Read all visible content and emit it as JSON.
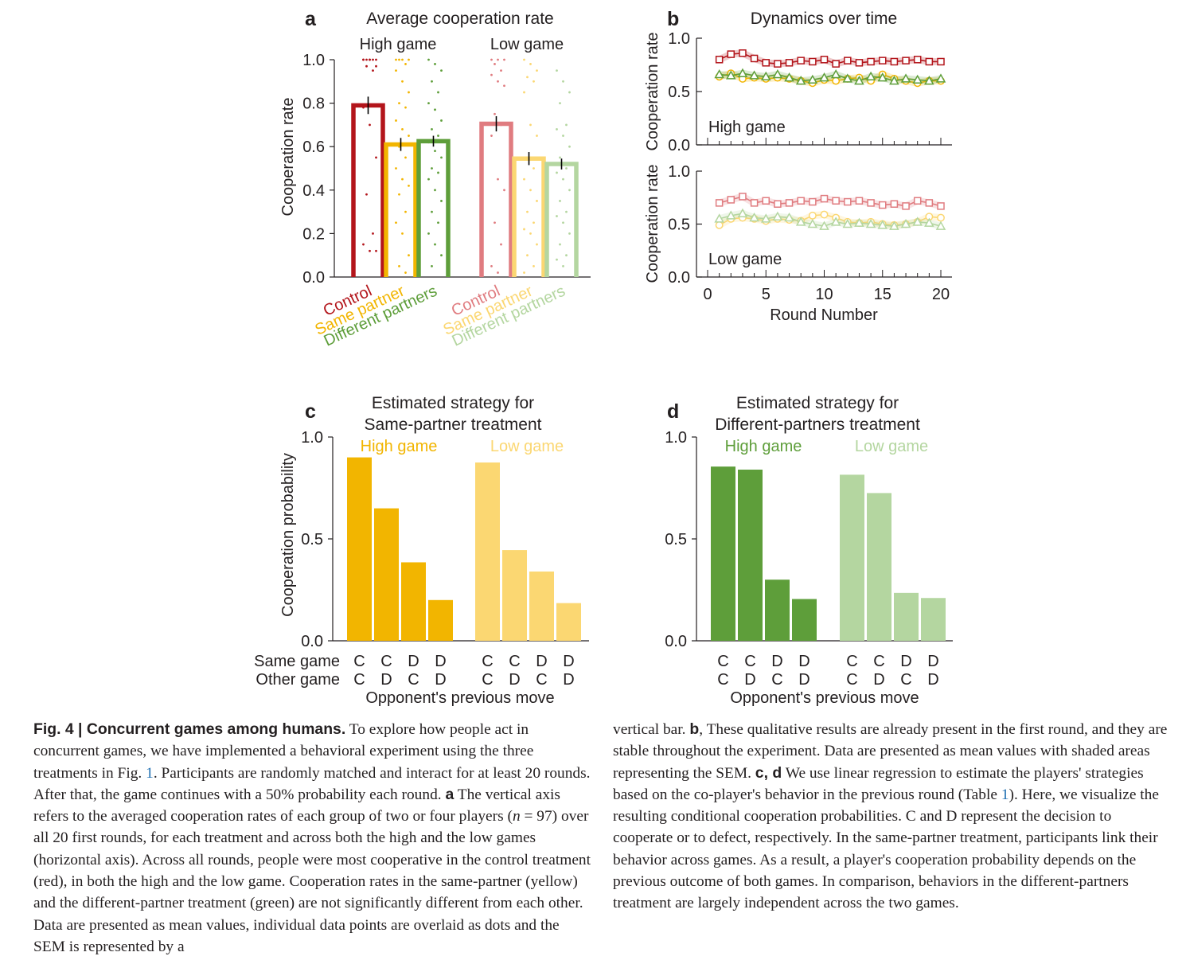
{
  "colors": {
    "control_high": "#b3151b",
    "same_high": "#f2b500",
    "diff_high": "#5e9e3a",
    "control_low": "#e07c80",
    "same_low": "#fbd772",
    "diff_low": "#b4d6a0",
    "axis": "#231f20"
  },
  "panel_a": {
    "letter": "a",
    "title": "Average cooperation rate",
    "ylabel": "Cooperation rate",
    "group_labels": [
      "High game",
      "Low game"
    ],
    "xticklabels": [
      "Control",
      "Same partner",
      "Different partners"
    ],
    "chart_data": {
      "type": "bar",
      "ylim": [
        0,
        1.0
      ],
      "yticks": [
        "0.0",
        "0.2",
        "0.4",
        "0.6",
        "0.8",
        "1.0"
      ],
      "groups": [
        "High game",
        "Low game"
      ],
      "categories": [
        "Control",
        "Same partner",
        "Different partners"
      ],
      "values": [
        [
          0.79,
          0.61,
          0.625
        ],
        [
          0.705,
          0.545,
          0.52
        ]
      ],
      "sem": [
        [
          0.04,
          0.03,
          0.025
        ],
        [
          0.035,
          0.03,
          0.025
        ]
      ],
      "points": [
        [
          [
            1,
            1,
            1,
            1,
            1,
            1,
            1,
            0.97,
            0.97,
            0.95,
            0.78,
            0.7,
            0.55,
            0.38,
            0.2,
            0.15,
            0.12,
            0.12
          ],
          [
            1,
            1,
            1,
            1,
            0.98,
            0.95,
            0.9,
            0.85,
            0.8,
            0.78,
            0.72,
            0.68,
            0.65,
            0.6,
            0.55,
            0.5,
            0.45,
            0.42,
            0.38,
            0.3,
            0.25,
            0.2,
            0.1,
            0.05,
            0.02
          ],
          [
            1,
            0.98,
            0.95,
            0.9,
            0.85,
            0.8,
            0.77,
            0.72,
            0.68,
            0.65,
            0.62,
            0.58,
            0.55,
            0.5,
            0.48,
            0.45,
            0.4,
            0.35,
            0.3,
            0.25,
            0.2,
            0.15,
            0.1,
            0.05
          ]
        ],
        [
          [
            1,
            1,
            1,
            0.98,
            0.95,
            0.93,
            0.9,
            0.88,
            0.75,
            0.7,
            0.65,
            0.45,
            0.4,
            0.25,
            0.15,
            0.05,
            0.02
          ],
          [
            1,
            0.98,
            0.95,
            0.92,
            0.9,
            0.85,
            0.7,
            0.65,
            0.55,
            0.5,
            0.45,
            0.4,
            0.35,
            0.3,
            0.25,
            0.22,
            0.2,
            0.15,
            0.1,
            0.05,
            0.02
          ],
          [
            0.95,
            0.9,
            0.85,
            0.8,
            0.7,
            0.68,
            0.65,
            0.6,
            0.55,
            0.5,
            0.48,
            0.45,
            0.4,
            0.35,
            0.3,
            0.28,
            0.25,
            0.2,
            0.15,
            0.1,
            0.08,
            0.05
          ]
        ]
      ]
    }
  },
  "panel_b": {
    "letter": "b",
    "title": "Dynamics over time",
    "ylabel": "Cooperation rate",
    "xlabel": "Round Number",
    "xticks": [
      "0",
      "5",
      "10",
      "15",
      "20"
    ],
    "yticks": [
      "0.0",
      "0.5",
      "1.0"
    ],
    "subplots": [
      {
        "label": "High game",
        "chart_data": {
          "type": "line",
          "x": [
            1,
            2,
            3,
            4,
            5,
            6,
            7,
            8,
            9,
            10,
            11,
            12,
            13,
            14,
            15,
            16,
            17,
            18,
            19,
            20
          ],
          "ylim": [
            0,
            1
          ],
          "series": [
            {
              "color_key": "control_high",
              "marker": "square",
              "values": [
                0.8,
                0.85,
                0.86,
                0.81,
                0.77,
                0.76,
                0.77,
                0.79,
                0.78,
                0.8,
                0.76,
                0.79,
                0.77,
                0.78,
                0.79,
                0.78,
                0.79,
                0.8,
                0.78,
                0.78
              ]
            },
            {
              "color_key": "same_high",
              "marker": "circle",
              "values": [
                0.64,
                0.67,
                0.62,
                0.63,
                0.62,
                0.63,
                0.62,
                0.6,
                0.58,
                0.61,
                0.6,
                0.62,
                0.63,
                0.6,
                0.66,
                0.62,
                0.6,
                0.58,
                0.6,
                0.6
              ]
            },
            {
              "color_key": "diff_high",
              "marker": "triangle",
              "values": [
                0.66,
                0.65,
                0.67,
                0.65,
                0.64,
                0.66,
                0.63,
                0.6,
                0.61,
                0.63,
                0.66,
                0.62,
                0.6,
                0.64,
                0.63,
                0.6,
                0.62,
                0.61,
                0.6,
                0.62
              ]
            }
          ]
        }
      },
      {
        "label": "Low game",
        "chart_data": {
          "type": "line",
          "x": [
            1,
            2,
            3,
            4,
            5,
            6,
            7,
            8,
            9,
            10,
            11,
            12,
            13,
            14,
            15,
            16,
            17,
            18,
            19,
            20
          ],
          "ylim": [
            0,
            1
          ],
          "series": [
            {
              "color_key": "control_low",
              "marker": "square",
              "values": [
                0.7,
                0.73,
                0.76,
                0.7,
                0.72,
                0.69,
                0.7,
                0.72,
                0.71,
                0.74,
                0.72,
                0.71,
                0.72,
                0.7,
                0.68,
                0.69,
                0.67,
                0.72,
                0.7,
                0.67
              ]
            },
            {
              "color_key": "same_low",
              "marker": "circle",
              "values": [
                0.49,
                0.55,
                0.56,
                0.55,
                0.53,
                0.55,
                0.54,
                0.53,
                0.58,
                0.59,
                0.56,
                0.52,
                0.51,
                0.52,
                0.5,
                0.49,
                0.5,
                0.52,
                0.57,
                0.56
              ]
            },
            {
              "color_key": "diff_low",
              "marker": "triangle",
              "values": [
                0.55,
                0.58,
                0.6,
                0.56,
                0.55,
                0.57,
                0.56,
                0.52,
                0.5,
                0.48,
                0.52,
                0.5,
                0.51,
                0.5,
                0.49,
                0.48,
                0.5,
                0.52,
                0.51,
                0.48
              ]
            }
          ]
        }
      }
    ]
  },
  "panel_c": {
    "letter": "c",
    "title_lines": [
      "Estimated strategy for",
      "Same-partner treatment"
    ],
    "ylabel": "Cooperation probability",
    "group_labels": [
      "High game",
      "Low game"
    ],
    "row_labels": [
      "Same game",
      "Other game"
    ],
    "xlabel": "Opponent's previous move",
    "chart_data": {
      "type": "bar",
      "ylim": [
        0,
        1.0
      ],
      "yticks": [
        "0.0",
        "0.5",
        "1.0"
      ],
      "categories_same_game": [
        "C",
        "C",
        "D",
        "D"
      ],
      "categories_other_game": [
        "C",
        "D",
        "C",
        "D"
      ],
      "series": [
        {
          "name": "High game",
          "color_key": "same_high",
          "values": [
            0.9,
            0.65,
            0.385,
            0.2
          ]
        },
        {
          "name": "Low game",
          "color_key": "same_low",
          "values": [
            0.875,
            0.445,
            0.34,
            0.185
          ]
        }
      ]
    }
  },
  "panel_d": {
    "letter": "d",
    "title_lines": [
      "Estimated strategy for",
      "Different-partners treatment"
    ],
    "group_labels": [
      "High game",
      "Low game"
    ],
    "xlabel": "Opponent's previous move",
    "chart_data": {
      "type": "bar",
      "ylim": [
        0,
        1.0
      ],
      "yticks": [
        "0.0",
        "0.5",
        "1.0"
      ],
      "categories_same_game": [
        "C",
        "C",
        "D",
        "D"
      ],
      "categories_other_game": [
        "C",
        "D",
        "C",
        "D"
      ],
      "series": [
        {
          "name": "High game",
          "color_key": "diff_high",
          "values": [
            0.855,
            0.84,
            0.3,
            0.205
          ]
        },
        {
          "name": "Low game",
          "color_key": "diff_low",
          "values": [
            0.815,
            0.725,
            0.235,
            0.21
          ]
        }
      ]
    }
  },
  "caption": {
    "fig_label": "Fig. 4",
    "separator": " | ",
    "fig_title": "Concurrent games among humans.",
    "left": {
      "p1": " To explore how people act in concurrent games, we have implemented a behavioral experiment using the three treatments in Fig. ",
      "ref1": "1",
      "p2": ". Participants are randomly matched and interact for at least 20 rounds. After that, the game continues with a 50% probability each round. ",
      "a": "a",
      "p3": " The vertical axis refers to the averaged cooperation rates of each group of two or four players (",
      "n": "n",
      "p4": " = 97) over all 20 first rounds, for each treatment and across both the high and the low games (horizontal axis). Across all rounds, people were most cooperative in the control treatment (red), in both the high and the low game. Cooperation rates in the same-partner (yellow) and the different-partner treatment (green) are not significantly different from each other. Data are presented as mean values, individual data points are overlaid as dots and the SEM is represented by a"
    },
    "right": {
      "p1": "vertical bar. ",
      "b": "b",
      "p2": ", These qualitative results are already present in the first round, and they are stable throughout the experiment. Data are presented as mean values with shaded areas representing the SEM. ",
      "cd": "c, d",
      "p3": " We use linear regression to estimate the players' strategies based on the co-player's behavior in the previous round (Table ",
      "ref": "1",
      "p4": "). Here, we visualize the resulting conditional cooperation probabilities. C and D represent the decision to cooperate or to defect, respectively. In the same-partner treatment, participants link their behavior across games. As a result, a player's cooperation probability depends on the previous outcome of both games. In comparison, behaviors in the different-partners treatment are largely independent across the two games."
    }
  }
}
